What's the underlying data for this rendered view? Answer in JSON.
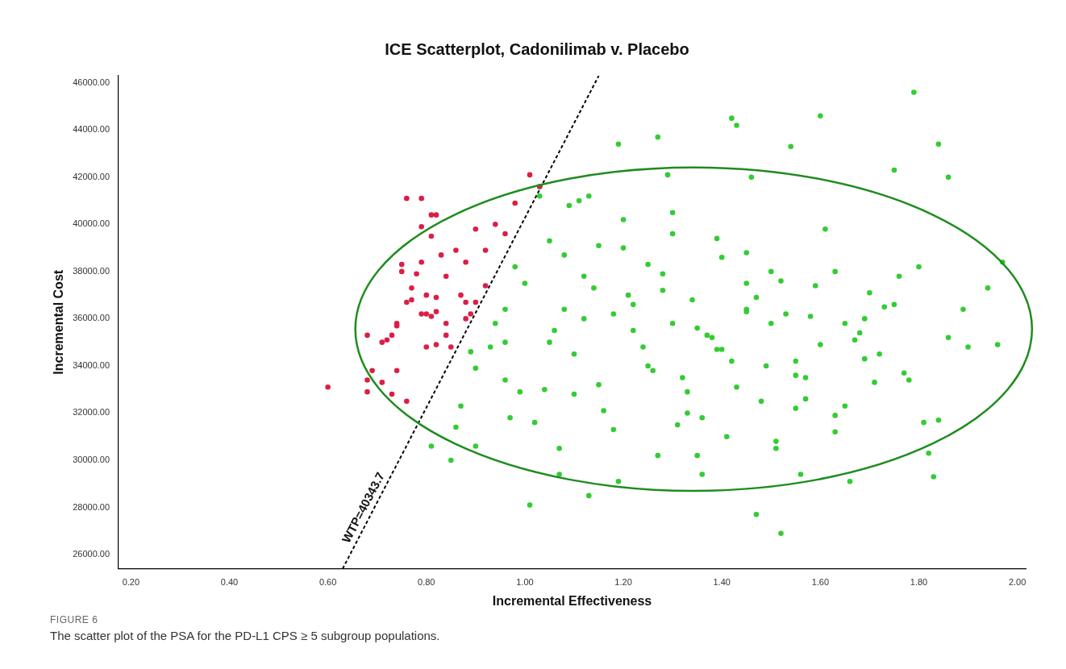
{
  "chart_data": {
    "type": "scatter",
    "title": "ICE Scatterplot, Cadonilimab v. Placebo",
    "xlabel": "Incremental Effectiveness",
    "ylabel": "Incremental Cost",
    "xlim": [
      0.175,
      2.017
    ],
    "ylim": [
      25400,
      46300
    ],
    "xticks": [
      {
        "value": 0.2,
        "label": "0.20"
      },
      {
        "value": 0.4,
        "label": "0.40"
      },
      {
        "value": 0.6,
        "label": "0.60"
      },
      {
        "value": 0.8,
        "label": "0.80"
      },
      {
        "value": 1.0,
        "label": "1.00"
      },
      {
        "value": 1.2,
        "label": "1.20"
      },
      {
        "value": 1.4,
        "label": "1.40"
      },
      {
        "value": 1.6,
        "label": "1.60"
      },
      {
        "value": 1.8,
        "label": "1.80"
      },
      {
        "value": 2.0,
        "label": "2.00"
      }
    ],
    "yticks": [
      {
        "value": 26000,
        "label": "26000.00"
      },
      {
        "value": 28000,
        "label": "28000.00"
      },
      {
        "value": 30000,
        "label": "30000.00"
      },
      {
        "value": 32000,
        "label": "32000.00"
      },
      {
        "value": 34000,
        "label": "34000.00"
      },
      {
        "value": 36000,
        "label": "36000.00"
      },
      {
        "value": 38000,
        "label": "38000.00"
      },
      {
        "value": 40000,
        "label": "40000.00"
      },
      {
        "value": 42000,
        "label": "42000.00"
      },
      {
        "value": 44000,
        "label": "44000.00"
      },
      {
        "value": 46000,
        "label": "46000.00"
      }
    ],
    "grid": false,
    "legend": false,
    "marker": "circle",
    "series": [
      {
        "color": "#dc1e46",
        "x": [
          0.6,
          0.68,
          0.69,
          0.68,
          0.68,
          0.71,
          0.72,
          0.73,
          0.74,
          0.74,
          0.75,
          0.75,
          0.76,
          0.79,
          0.76,
          0.77,
          0.77,
          0.78,
          0.79,
          0.8,
          0.79,
          0.79,
          0.81,
          0.8,
          0.81,
          0.82,
          0.81,
          0.82,
          0.8,
          0.82,
          0.83,
          0.84,
          0.84,
          0.84,
          0.82,
          0.86,
          0.87,
          0.88,
          0.88,
          0.89,
          0.9,
          0.9,
          0.92,
          0.92,
          0.94,
          0.96,
          0.98,
          1.01,
          1.03,
          0.88,
          0.85,
          0.74,
          0.71,
          0.73,
          0.76
        ],
        "values": [
          33100,
          35300,
          33800,
          32900,
          33400,
          35000,
          35100,
          35300,
          35800,
          35700,
          38300,
          38000,
          41100,
          41100,
          36700,
          36800,
          37300,
          37900,
          36200,
          36200,
          38400,
          39900,
          39500,
          37000,
          40400,
          40400,
          36100,
          36300,
          34800,
          34900,
          38700,
          37800,
          35800,
          35300,
          36900,
          38900,
          37000,
          36700,
          36000,
          36200,
          36700,
          39800,
          38900,
          37400,
          40000,
          39600,
          40900,
          42100,
          41600,
          38400,
          34800,
          33800,
          33300,
          32800,
          32500
        ]
      },
      {
        "color": "#33cc33",
        "x": [
          1.79,
          1.6,
          1.42,
          1.43,
          1.27,
          1.19,
          1.54,
          1.84,
          1.75,
          1.86,
          1.46,
          1.29,
          1.47,
          1.52,
          1.01,
          1.13,
          1.19,
          1.36,
          1.56,
          1.66,
          1.83,
          1.82,
          1.84,
          1.9,
          1.97,
          1.96,
          1.94,
          1.89,
          0.81,
          0.85,
          0.86,
          0.87,
          0.9,
          0.9,
          0.89,
          0.94,
          0.93,
          0.96,
          0.96,
          0.97,
          0.99,
          0.96,
          0.98,
          1.0,
          1.03,
          1.03,
          1.05,
          1.07,
          1.07,
          1.02,
          1.08,
          1.09,
          1.11,
          1.13,
          1.05,
          1.1,
          1.12,
          1.15,
          1.18,
          1.2,
          1.22,
          1.25,
          1.28,
          1.3,
          1.32,
          1.34,
          1.36,
          1.38,
          1.4,
          1.42,
          1.45,
          1.48,
          1.5,
          1.52,
          1.55,
          1.58,
          1.6,
          1.63,
          1.65,
          1.68,
          1.7,
          1.72,
          1.75,
          1.78,
          1.8,
          1.04,
          1.08,
          1.12,
          1.16,
          1.2,
          1.24,
          1.28,
          1.31,
          1.35,
          1.39,
          1.43,
          1.47,
          1.51,
          1.55,
          1.59,
          1.63,
          1.67,
          1.71,
          1.76,
          1.06,
          1.1,
          1.14,
          1.18,
          1.22,
          1.26,
          1.3,
          1.33,
          1.37,
          1.41,
          1.45,
          1.49,
          1.53,
          1.57,
          1.61,
          1.65,
          1.69,
          1.73,
          1.77,
          1.81,
          1.15,
          1.21,
          1.27,
          1.33,
          1.39,
          1.45,
          1.51,
          1.57,
          1.63,
          1.69,
          1.25,
          1.35,
          1.45,
          1.55,
          1.3,
          1.4,
          1.5,
          1.86
        ],
        "values": [
          45600,
          44600,
          44500,
          44200,
          43700,
          43400,
          43300,
          43400,
          42300,
          42000,
          42000,
          42100,
          27700,
          26900,
          28100,
          28500,
          29100,
          29400,
          29400,
          29100,
          29300,
          30300,
          31700,
          34800,
          38400,
          34900,
          37300,
          36400,
          30600,
          30000,
          31400,
          32300,
          30600,
          33900,
          34600,
          35800,
          34800,
          35000,
          33400,
          31800,
          32900,
          36400,
          38200,
          37500,
          41600,
          41200,
          39300,
          30500,
          29400,
          31600,
          36400,
          40800,
          41000,
          41200,
          35000,
          34500,
          37800,
          33200,
          36200,
          39000,
          35500,
          34000,
          37200,
          35800,
          33500,
          36800,
          31800,
          35200,
          38600,
          34200,
          36400,
          32500,
          35800,
          37600,
          33600,
          36100,
          34900,
          38000,
          32300,
          35400,
          37100,
          34500,
          36600,
          33400,
          38200,
          33000,
          38700,
          36000,
          32100,
          40200,
          34800,
          37900,
          31500,
          35600,
          39400,
          33100,
          36900,
          30500,
          34200,
          37400,
          31200,
          35100,
          33300,
          37800,
          35500,
          32800,
          37300,
          31300,
          36600,
          33800,
          40500,
          32000,
          35300,
          31000,
          38800,
          34000,
          36200,
          32600,
          39800,
          35800,
          34300,
          36500,
          33700,
          31600,
          39100,
          37000,
          30200,
          32900,
          34700,
          36300,
          30800,
          33500,
          31900,
          36000,
          38300,
          30200,
          37500,
          32200,
          39600,
          34700,
          38000,
          35200
        ]
      },
      {
        "type": "line",
        "color": "#000000",
        "marker": "none",
        "line_style": "dashed",
        "x": [
          0.63,
          1.15
        ],
        "values": [
          25400,
          46300
        ]
      }
    ],
    "annotations": [
      {
        "text": "WTP=40343.7",
        "x": 0.69,
        "y": 27800
      },
      "FIGURE 6",
      "The scatter plot of the PSA for the PD-L1 CPS ≥ 5 subgroup populations."
    ]
  }
}
